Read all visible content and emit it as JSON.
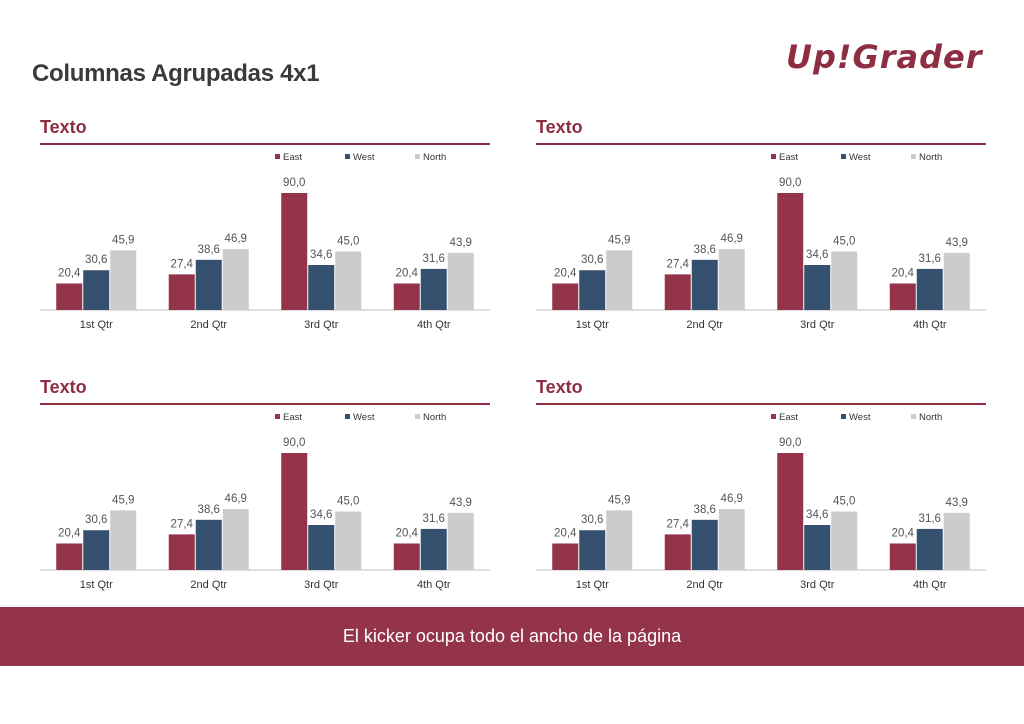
{
  "page": {
    "title": "Columnas Agrupadas 4x1",
    "logo_text": "Up!Grader",
    "kicker": "El kicker ocupa todo el ancho de la página"
  },
  "colors": {
    "accent": "#8e2e42",
    "east": "#93344a",
    "west": "#36506f",
    "north": "#cccccc",
    "kicker_bg": "#93344a"
  },
  "panels": [
    {
      "title": "Texto"
    },
    {
      "title": "Texto"
    },
    {
      "title": "Texto"
    },
    {
      "title": "Texto"
    }
  ],
  "chart_data": [
    {
      "type": "bar",
      "categories": [
        "1st Qtr",
        "2nd Qtr",
        "3rd Qtr",
        "4th Qtr"
      ],
      "series": [
        {
          "name": "East",
          "values": [
            20.4,
            27.4,
            90.0,
            20.4
          ],
          "labels": [
            "20,4",
            "27,4",
            "90,0",
            "20,4"
          ]
        },
        {
          "name": "West",
          "values": [
            30.6,
            38.6,
            34.6,
            31.6
          ],
          "labels": [
            "30,6",
            "38,6",
            "34,6",
            "31,6"
          ]
        },
        {
          "name": "North",
          "values": [
            45.9,
            46.9,
            45.0,
            43.9
          ],
          "labels": [
            "45,9",
            "46,9",
            "45,0",
            "43,9"
          ]
        }
      ],
      "legend": "top-right",
      "grid": false,
      "ylim": [
        0,
        100
      ]
    },
    {
      "type": "bar",
      "categories": [
        "1st Qtr",
        "2nd Qtr",
        "3rd Qtr",
        "4th Qtr"
      ],
      "series": [
        {
          "name": "East",
          "values": [
            20.4,
            27.4,
            90.0,
            20.4
          ],
          "labels": [
            "20,4",
            "27,4",
            "90,0",
            "20,4"
          ]
        },
        {
          "name": "West",
          "values": [
            30.6,
            38.6,
            34.6,
            31.6
          ],
          "labels": [
            "30,6",
            "38,6",
            "34,6",
            "31,6"
          ]
        },
        {
          "name": "North",
          "values": [
            45.9,
            46.9,
            45.0,
            43.9
          ],
          "labels": [
            "45,9",
            "46,9",
            "45,0",
            "43,9"
          ]
        }
      ],
      "legend": "top-right",
      "grid": false,
      "ylim": [
        0,
        100
      ]
    },
    {
      "type": "bar",
      "categories": [
        "1st Qtr",
        "2nd Qtr",
        "3rd Qtr",
        "4th Qtr"
      ],
      "series": [
        {
          "name": "East",
          "values": [
            20.4,
            27.4,
            90.0,
            20.4
          ],
          "labels": [
            "20,4",
            "27,4",
            "90,0",
            "20,4"
          ]
        },
        {
          "name": "West",
          "values": [
            30.6,
            38.6,
            34.6,
            31.6
          ],
          "labels": [
            "30,6",
            "38,6",
            "34,6",
            "31,6"
          ]
        },
        {
          "name": "North",
          "values": [
            45.9,
            46.9,
            45.0,
            43.9
          ],
          "labels": [
            "45,9",
            "46,9",
            "45,0",
            "43,9"
          ]
        }
      ],
      "legend": "top-right",
      "grid": false,
      "ylim": [
        0,
        100
      ]
    },
    {
      "type": "bar",
      "categories": [
        "1st Qtr",
        "2nd Qtr",
        "3rd Qtr",
        "4th Qtr"
      ],
      "series": [
        {
          "name": "East",
          "values": [
            20.4,
            27.4,
            90.0,
            20.4
          ],
          "labels": [
            "20,4",
            "27,4",
            "90,0",
            "20,4"
          ]
        },
        {
          "name": "West",
          "values": [
            30.6,
            38.6,
            34.6,
            31.6
          ],
          "labels": [
            "30,6",
            "38,6",
            "34,6",
            "31,6"
          ]
        },
        {
          "name": "North",
          "values": [
            45.9,
            46.9,
            45.0,
            43.9
          ],
          "labels": [
            "45,9",
            "46,9",
            "45,0",
            "43,9"
          ]
        }
      ],
      "legend": "top-right",
      "grid": false,
      "ylim": [
        0,
        100
      ]
    }
  ]
}
